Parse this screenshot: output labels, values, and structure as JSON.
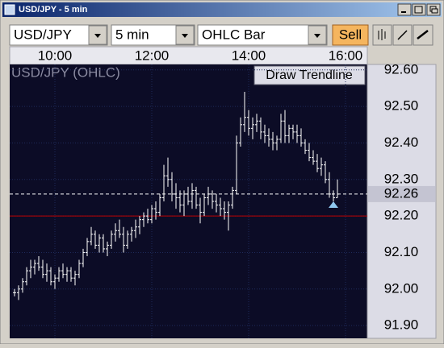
{
  "window": {
    "title": "USD/JPY - 5 min"
  },
  "toolbar": {
    "symbol": "USD/JPY",
    "interval": "5 min",
    "chart_style": "OHLC Bar",
    "action": "Sell"
  },
  "chart_data": {
    "type": "ohlc",
    "title": "USD/JPY (OHLC)",
    "tool": "Draw Trendline",
    "color": "#ffffff",
    "grid": true,
    "xlim": [
      544,
      987
    ],
    "xticks": [
      {
        "value": 600,
        "label": "10:00"
      },
      {
        "value": 720,
        "label": "12:00"
      },
      {
        "value": 840,
        "label": "14:00"
      },
      {
        "value": 960,
        "label": "16:00"
      }
    ],
    "ylim": [
      91.865,
      92.615
    ],
    "yticks": [
      {
        "value": 91.9,
        "label": "91.90"
      },
      {
        "value": 92.0,
        "label": "92.00"
      },
      {
        "value": 92.1,
        "label": "92.10"
      },
      {
        "value": 92.2,
        "label": "92.20"
      },
      {
        "value": 92.3,
        "label": "92.30"
      },
      {
        "value": 92.4,
        "label": "92.40"
      },
      {
        "value": 92.5,
        "label": "92.50"
      },
      {
        "value": 92.6,
        "label": "92.60"
      }
    ],
    "x": [
      550,
      555,
      560,
      565,
      570,
      575,
      580,
      585,
      590,
      595,
      600,
      605,
      610,
      615,
      620,
      625,
      630,
      635,
      640,
      645,
      650,
      655,
      660,
      665,
      670,
      675,
      680,
      685,
      690,
      695,
      700,
      705,
      710,
      715,
      720,
      725,
      730,
      735,
      740,
      745,
      750,
      755,
      760,
      765,
      770,
      775,
      780,
      785,
      790,
      795,
      800,
      805,
      810,
      815,
      820,
      825,
      830,
      835,
      840,
      845,
      850,
      855,
      860,
      865,
      870,
      875,
      880,
      885,
      890,
      895,
      900,
      905,
      910,
      915,
      920,
      925,
      930,
      935,
      940,
      945,
      950
    ],
    "ohlc": [
      [
        91.99,
        92.0,
        91.98,
        91.99
      ],
      [
        91.99,
        92.01,
        91.97,
        92.0
      ],
      [
        92.0,
        92.03,
        91.99,
        92.02
      ],
      [
        92.02,
        92.06,
        92.01,
        92.05
      ],
      [
        92.05,
        92.08,
        92.03,
        92.06
      ],
      [
        92.06,
        92.08,
        92.04,
        92.07
      ],
      [
        92.07,
        92.09,
        92.05,
        92.06
      ],
      [
        92.06,
        92.08,
        92.03,
        92.04
      ],
      [
        92.04,
        92.07,
        92.02,
        92.05
      ],
      [
        92.05,
        92.06,
        92.01,
        92.02
      ],
      [
        92.02,
        92.04,
        92.0,
        92.03
      ],
      [
        92.03,
        92.06,
        92.02,
        92.05
      ],
      [
        92.05,
        92.07,
        92.03,
        92.04
      ],
      [
        92.04,
        92.06,
        92.02,
        92.05
      ],
      [
        92.05,
        92.06,
        92.02,
        92.03
      ],
      [
        92.03,
        92.05,
        92.01,
        92.04
      ],
      [
        92.04,
        92.08,
        92.03,
        92.07
      ],
      [
        92.07,
        92.11,
        92.06,
        92.1
      ],
      [
        92.1,
        92.14,
        92.09,
        92.13
      ],
      [
        92.13,
        92.17,
        92.12,
        92.15
      ],
      [
        92.15,
        92.16,
        92.11,
        92.12
      ],
      [
        92.12,
        92.15,
        92.1,
        92.14
      ],
      [
        92.14,
        92.15,
        92.1,
        92.11
      ],
      [
        92.11,
        92.13,
        92.09,
        92.12
      ],
      [
        92.12,
        92.16,
        92.11,
        92.15
      ],
      [
        92.15,
        92.18,
        92.13,
        92.16
      ],
      [
        92.16,
        92.19,
        92.14,
        92.15
      ],
      [
        92.15,
        92.17,
        92.1,
        92.12
      ],
      [
        92.12,
        92.16,
        92.11,
        92.15
      ],
      [
        92.15,
        92.17,
        92.13,
        92.16
      ],
      [
        92.16,
        92.19,
        92.14,
        92.17
      ],
      [
        92.17,
        92.2,
        92.15,
        92.19
      ],
      [
        92.19,
        92.21,
        92.17,
        92.2
      ],
      [
        92.2,
        92.22,
        92.18,
        92.19
      ],
      [
        92.19,
        92.23,
        92.18,
        92.22
      ],
      [
        92.22,
        92.24,
        92.19,
        92.21
      ],
      [
        92.21,
        92.26,
        92.2,
        92.25
      ],
      [
        92.25,
        92.34,
        92.24,
        92.31
      ],
      [
        92.31,
        92.36,
        92.28,
        92.3
      ],
      [
        92.3,
        92.32,
        92.24,
        92.26
      ],
      [
        92.26,
        92.29,
        92.22,
        92.25
      ],
      [
        92.25,
        92.27,
        92.21,
        92.23
      ],
      [
        92.23,
        92.27,
        92.2,
        92.26
      ],
      [
        92.26,
        92.28,
        92.23,
        92.24
      ],
      [
        92.24,
        92.29,
        92.22,
        92.27
      ],
      [
        92.27,
        92.28,
        92.22,
        92.23
      ],
      [
        92.23,
        92.25,
        92.18,
        92.21
      ],
      [
        92.21,
        92.26,
        92.2,
        92.25
      ],
      [
        92.25,
        92.28,
        92.23,
        92.26
      ],
      [
        92.26,
        92.27,
        92.22,
        92.24
      ],
      [
        92.24,
        92.26,
        92.21,
        92.23
      ],
      [
        92.23,
        92.25,
        92.2,
        92.22
      ],
      [
        92.22,
        92.24,
        92.19,
        92.21
      ],
      [
        92.21,
        92.24,
        92.16,
        92.23
      ],
      [
        92.23,
        92.28,
        92.22,
        92.27
      ],
      [
        92.27,
        92.42,
        92.26,
        92.4
      ],
      [
        92.4,
        92.47,
        92.39,
        92.45
      ],
      [
        92.45,
        92.54,
        92.43,
        92.47
      ],
      [
        92.47,
        92.49,
        92.42,
        92.44
      ],
      [
        92.44,
        92.47,
        92.41,
        92.45
      ],
      [
        92.45,
        92.48,
        92.43,
        92.46
      ],
      [
        92.46,
        92.47,
        92.41,
        92.43
      ],
      [
        92.43,
        92.45,
        92.4,
        92.42
      ],
      [
        92.42,
        92.44,
        92.39,
        92.41
      ],
      [
        92.41,
        92.43,
        92.38,
        92.4
      ],
      [
        92.4,
        92.42,
        92.38,
        92.41
      ],
      [
        92.41,
        92.48,
        92.4,
        92.46
      ],
      [
        92.46,
        92.49,
        92.4,
        92.42
      ],
      [
        92.42,
        92.45,
        92.4,
        92.44
      ],
      [
        92.44,
        92.45,
        92.41,
        92.43
      ],
      [
        92.43,
        92.45,
        92.4,
        92.42
      ],
      [
        92.42,
        92.44,
        92.39,
        92.4
      ],
      [
        92.4,
        92.41,
        92.37,
        92.38
      ],
      [
        92.38,
        92.4,
        92.35,
        92.36
      ],
      [
        92.36,
        92.38,
        92.34,
        92.35
      ],
      [
        92.35,
        92.37,
        92.32,
        92.33
      ],
      [
        92.33,
        92.36,
        92.31,
        92.34
      ],
      [
        92.34,
        92.35,
        92.29,
        92.3
      ],
      [
        92.3,
        92.32,
        92.25,
        92.26
      ],
      [
        92.26,
        92.27,
        92.24,
        92.25
      ],
      [
        92.25,
        92.3,
        92.25,
        92.26
      ]
    ],
    "current_price": 92.26,
    "current_color": "#ffffff",
    "level_line": 92.2,
    "level_color": "#c00000",
    "marker": {
      "x": 945,
      "y": 92.24,
      "color": "#8fc8f0"
    }
  }
}
